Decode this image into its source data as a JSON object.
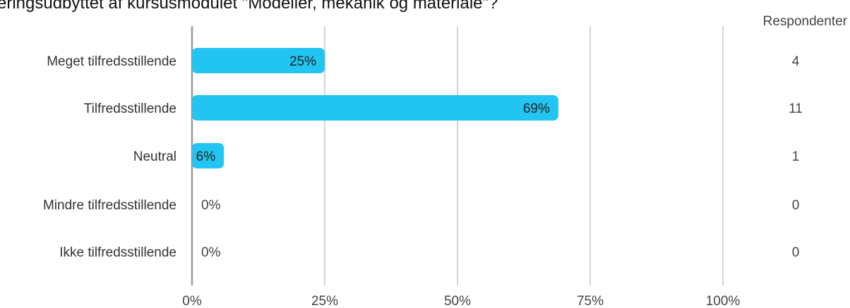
{
  "colors": {
    "bar": "#22C4F2",
    "grid": "#b8b8b8",
    "axis": "#9a9a9a",
    "text": "#333333"
  },
  "chart_data": {
    "type": "bar",
    "orientation": "horizontal",
    "title": "ærings­udbyttet af kursusmodulet \"Modeller, mekanik og materiale\"?",
    "categories": [
      "Meget tilfredsstillende",
      "Tilfredsstillende",
      "Neutral",
      "Mindre tilfredsstillende",
      "Ikke tilfredsstillende"
    ],
    "values": [
      25,
      69,
      6,
      0,
      0
    ],
    "value_labels": [
      "25%",
      "69%",
      "6%",
      "0%",
      "0%"
    ],
    "counts": [
      4,
      11,
      1,
      0,
      0
    ],
    "counts_header": "Respondenter",
    "xlim": [
      0,
      100
    ],
    "x_ticks": [
      0,
      25,
      50,
      75,
      100
    ],
    "x_tick_labels": [
      "0%",
      "25%",
      "50%",
      "75%",
      "100%"
    ],
    "grid": true,
    "legend": "none"
  }
}
